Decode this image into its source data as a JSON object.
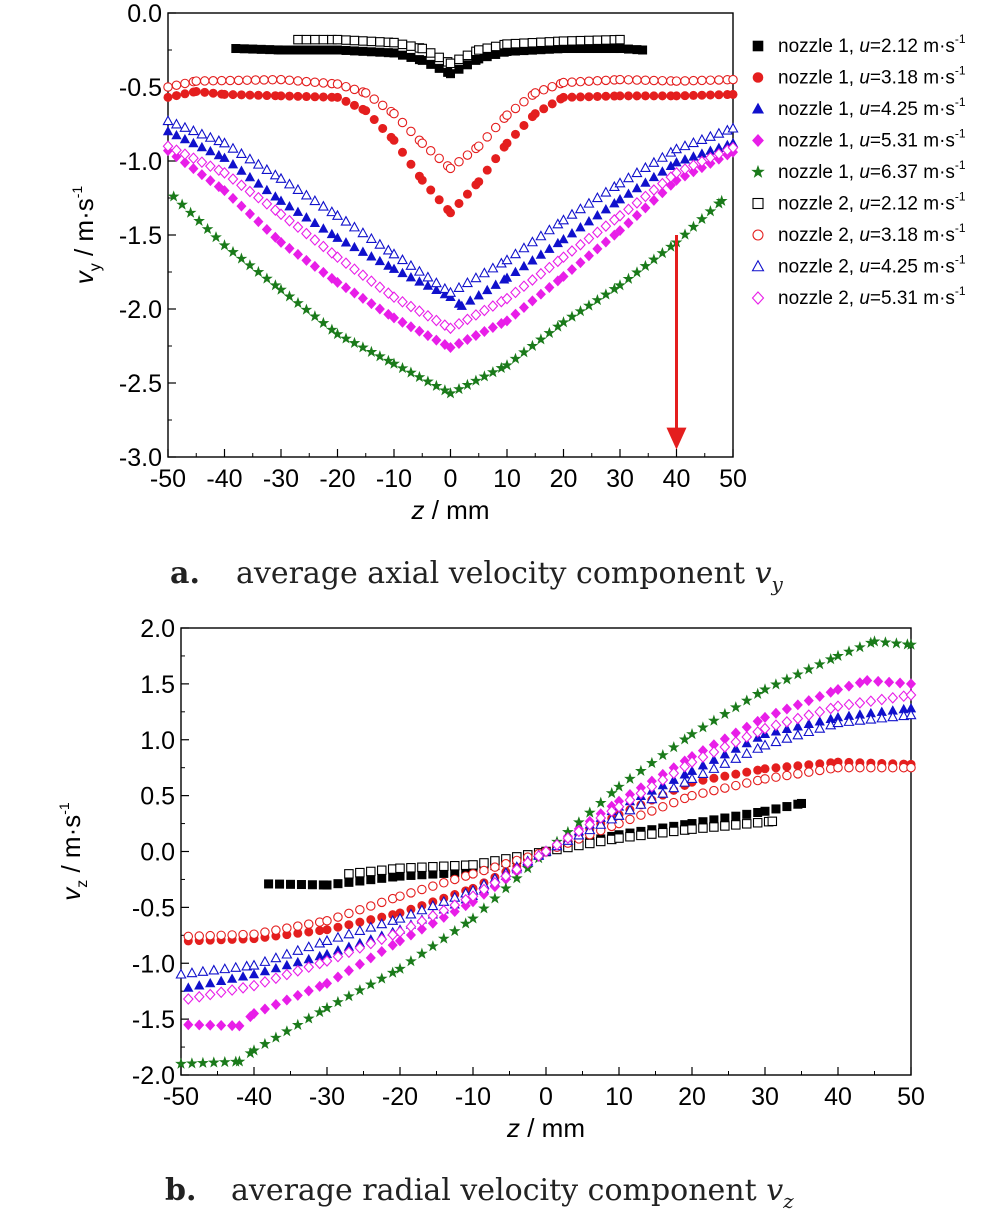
{
  "chart_data": [
    {
      "type": "scatter",
      "xlabel": "z / mm",
      "ylabel": "v_y / m·s^-1",
      "ylabel_parts": {
        "main": "v",
        "sub": "y",
        "unit": " / m·s",
        "sup": "-1"
      },
      "xlim": [
        -50,
        50
      ],
      "ylim": [
        -3.0,
        0.0
      ],
      "xticks": [
        "-50",
        "-40",
        "-30",
        "-20",
        "-10",
        "0",
        "10",
        "20",
        "30",
        "40",
        "50"
      ],
      "yticks": [
        "0.0",
        "-0.5",
        "-1.0",
        "-1.5",
        "-2.0",
        "-2.5",
        "-3.0"
      ],
      "caption": {
        "letter": "a.",
        "text": "average axial velocity component",
        "var": "v",
        "sub": "y"
      },
      "legend_position": "right",
      "annotation": {
        "type": "arrow",
        "label": "",
        "x": 40,
        "y_from": -1.5,
        "y_to": -2.95,
        "color": "#e41e1e"
      },
      "series": [
        {
          "name": "nozzle 1, u=2.12 m·s-1",
          "nozzle": "nozzle 1, ",
          "u": "u",
          "val": "=2.12 m·s",
          "sup": "-1",
          "marker": "square-filled",
          "color": "#000000",
          "points": [
            [
              -38,
              -0.24
            ],
            [
              -30,
              -0.25
            ],
            [
              -20,
              -0.25
            ],
            [
              -10,
              -0.27
            ],
            [
              -5,
              -0.32
            ],
            [
              0,
              -0.41
            ],
            [
              5,
              -0.31
            ],
            [
              10,
              -0.26
            ],
            [
              20,
              -0.24
            ],
            [
              30,
              -0.24
            ],
            [
              34,
              -0.25
            ]
          ]
        },
        {
          "name": "nozzle 1, u=3.18 m·s-1",
          "nozzle": "nozzle 1, ",
          "u": "u",
          "val": "=3.18 m·s",
          "sup": "-1",
          "marker": "circle-filled",
          "color": "#e41e1e",
          "points": [
            [
              -50,
              -0.57
            ],
            [
              -45,
              -0.53
            ],
            [
              -40,
              -0.55
            ],
            [
              -30,
              -0.56
            ],
            [
              -20,
              -0.57
            ],
            [
              -15,
              -0.66
            ],
            [
              -10,
              -0.86
            ],
            [
              -5,
              -1.13
            ],
            [
              0,
              -1.35
            ],
            [
              5,
              -1.14
            ],
            [
              10,
              -0.88
            ],
            [
              15,
              -0.68
            ],
            [
              20,
              -0.57
            ],
            [
              30,
              -0.56
            ],
            [
              40,
              -0.56
            ],
            [
              50,
              -0.55
            ]
          ]
        },
        {
          "name": "nozzle 1, u=4.25 m·s-1",
          "nozzle": "nozzle 1, ",
          "u": "u",
          "val": "=4.25 m·s",
          "sup": "-1",
          "marker": "triangle-filled",
          "color": "#1010cc",
          "points": [
            [
              -50,
              -0.8
            ],
            [
              -40,
              -0.98
            ],
            [
              -30,
              -1.27
            ],
            [
              -20,
              -1.52
            ],
            [
              -10,
              -1.73
            ],
            [
              0,
              -1.92
            ],
            [
              2,
              -1.98
            ],
            [
              10,
              -1.79
            ],
            [
              20,
              -1.53
            ],
            [
              30,
              -1.26
            ],
            [
              40,
              -1.01
            ],
            [
              50,
              -0.88
            ]
          ]
        },
        {
          "name": "nozzle 1, u=5.31 m·s-1",
          "nozzle": "nozzle 1, ",
          "u": "u",
          "val": "=5.31 m·s",
          "sup": "-1",
          "marker": "diamond-filled",
          "color": "#e81ee8",
          "points": [
            [
              -50,
              -0.93
            ],
            [
              -40,
              -1.2
            ],
            [
              -30,
              -1.55
            ],
            [
              -20,
              -1.82
            ],
            [
              -10,
              -2.06
            ],
            [
              0,
              -2.26
            ],
            [
              10,
              -2.08
            ],
            [
              20,
              -1.78
            ],
            [
              30,
              -1.47
            ],
            [
              40,
              -1.13
            ],
            [
              50,
              -0.94
            ]
          ]
        },
        {
          "name": "nozzle 1, u=6.37 m·s-1",
          "nozzle": "nozzle 1, ",
          "u": "u",
          "val": "=6.37 m·s",
          "sup": "-1",
          "marker": "star-filled",
          "color": "#1a7a1a",
          "points": [
            [
              -49,
              -1.24
            ],
            [
              -40,
              -1.57
            ],
            [
              -30,
              -1.87
            ],
            [
              -20,
              -2.17
            ],
            [
              -10,
              -2.37
            ],
            [
              0,
              -2.57
            ],
            [
              10,
              -2.38
            ],
            [
              20,
              -2.09
            ],
            [
              30,
              -1.84
            ],
            [
              40,
              -1.55
            ],
            [
              48,
              -1.27
            ]
          ]
        },
        {
          "name": "nozzle 2, u=2.12 m·s-1",
          "nozzle": "nozzle 2, ",
          "u": "u",
          "val": "=2.12 m·s",
          "sup": "-1",
          "marker": "square-open",
          "color": "#000000",
          "points": [
            [
              -27,
              -0.18
            ],
            [
              -20,
              -0.18
            ],
            [
              -10,
              -0.2
            ],
            [
              -5,
              -0.24
            ],
            [
              0,
              -0.34
            ],
            [
              5,
              -0.25
            ],
            [
              10,
              -0.21
            ],
            [
              20,
              -0.19
            ],
            [
              30,
              -0.18
            ]
          ]
        },
        {
          "name": "nozzle 2, u=3.18 m·s-1",
          "nozzle": "nozzle 2, ",
          "u": "u",
          "val": "=3.18 m·s",
          "sup": "-1",
          "marker": "circle-open",
          "color": "#e41e1e",
          "points": [
            [
              -50,
              -0.5
            ],
            [
              -45,
              -0.46
            ],
            [
              -30,
              -0.45
            ],
            [
              -20,
              -0.48
            ],
            [
              -15,
              -0.54
            ],
            [
              -10,
              -0.68
            ],
            [
              -5,
              -0.88
            ],
            [
              0,
              -1.05
            ],
            [
              5,
              -0.9
            ],
            [
              10,
              -0.69
            ],
            [
              15,
              -0.54
            ],
            [
              20,
              -0.47
            ],
            [
              30,
              -0.45
            ],
            [
              40,
              -0.46
            ],
            [
              50,
              -0.45
            ]
          ]
        },
        {
          "name": "nozzle 2, u=4.25 m·s-1",
          "nozzle": "nozzle 2, ",
          "u": "u",
          "val": "=4.25 m·s",
          "sup": "-1",
          "marker": "triangle-open",
          "color": "#1010cc",
          "points": [
            [
              -50,
              -0.73
            ],
            [
              -40,
              -0.88
            ],
            [
              -30,
              -1.12
            ],
            [
              -20,
              -1.37
            ],
            [
              -10,
              -1.63
            ],
            [
              0,
              -1.89
            ],
            [
              10,
              -1.67
            ],
            [
              20,
              -1.4
            ],
            [
              30,
              -1.15
            ],
            [
              40,
              -0.92
            ],
            [
              50,
              -0.78
            ]
          ]
        },
        {
          "name": "nozzle 2, u=5.31 m·s-1",
          "nozzle": "nozzle 2, ",
          "u": "u",
          "val": "=5.31 m·s",
          "sup": "-1",
          "marker": "diamond-open",
          "color": "#e81ee8",
          "points": [
            [
              -50,
              -0.9
            ],
            [
              -40,
              -1.08
            ],
            [
              -30,
              -1.36
            ],
            [
              -20,
              -1.65
            ],
            [
              -10,
              -1.92
            ],
            [
              0,
              -2.13
            ],
            [
              10,
              -1.93
            ],
            [
              20,
              -1.65
            ],
            [
              30,
              -1.37
            ],
            [
              40,
              -1.08
            ],
            [
              50,
              -0.91
            ]
          ]
        }
      ]
    },
    {
      "type": "scatter",
      "xlabel": "z / mm",
      "ylabel": "v_z / m·s^-1",
      "ylabel_parts": {
        "main": "v",
        "sub": "z",
        "unit": " / m·s",
        "sup": "-1"
      },
      "xlim": [
        -50,
        50
      ],
      "ylim": [
        -2.0,
        2.0
      ],
      "xticks": [
        "-50",
        "-40",
        "-30",
        "-20",
        "-10",
        "0",
        "10",
        "20",
        "30",
        "40",
        "50"
      ],
      "yticks": [
        "2.0",
        "1.5",
        "1.0",
        "0.5",
        "0.0",
        "-0.5",
        "-1.0",
        "-1.5",
        "-2.0"
      ],
      "caption": {
        "letter": "b.",
        "text": "average radial velocity component",
        "var": "v",
        "sub": "z"
      },
      "series": [
        {
          "name": "nozzle 1, u=2.12 m·s-1",
          "marker": "square-filled",
          "color": "#000000",
          "points": [
            [
              -38,
              -0.29
            ],
            [
              -30,
              -0.3
            ],
            [
              -20,
              -0.22
            ],
            [
              -10,
              -0.18
            ],
            [
              0,
              0.0
            ],
            [
              10,
              0.15
            ],
            [
              20,
              0.25
            ],
            [
              30,
              0.36
            ],
            [
              35,
              0.43
            ]
          ]
        },
        {
          "name": "nozzle 1, u=3.18 m·s-1",
          "marker": "circle-filled",
          "color": "#e41e1e",
          "points": [
            [
              -49,
              -0.8
            ],
            [
              -40,
              -0.78
            ],
            [
              -30,
              -0.7
            ],
            [
              -20,
              -0.55
            ],
            [
              -10,
              -0.33
            ],
            [
              0,
              0.0
            ],
            [
              10,
              0.33
            ],
            [
              20,
              0.62
            ],
            [
              30,
              0.74
            ],
            [
              40,
              0.8
            ],
            [
              50,
              0.78
            ]
          ]
        },
        {
          "name": "nozzle 1, u=4.25 m·s-1",
          "marker": "triangle-filled",
          "color": "#1010cc",
          "points": [
            [
              -49,
              -1.22
            ],
            [
              -40,
              -1.1
            ],
            [
              -30,
              -0.92
            ],
            [
              -20,
              -0.7
            ],
            [
              -10,
              -0.4
            ],
            [
              0,
              0.0
            ],
            [
              10,
              0.4
            ],
            [
              20,
              0.72
            ],
            [
              30,
              1.05
            ],
            [
              40,
              1.2
            ],
            [
              50,
              1.28
            ]
          ]
        },
        {
          "name": "nozzle 1, u=5.31 m·s-1",
          "marker": "diamond-filled",
          "color": "#e81ee8",
          "points": [
            [
              -49,
              -1.55
            ],
            [
              -42,
              -1.56
            ],
            [
              -40,
              -1.45
            ],
            [
              -30,
              -1.18
            ],
            [
              -20,
              -0.8
            ],
            [
              -10,
              -0.45
            ],
            [
              0,
              0.0
            ],
            [
              10,
              0.45
            ],
            [
              20,
              0.85
            ],
            [
              30,
              1.2
            ],
            [
              40,
              1.45
            ],
            [
              44,
              1.53
            ],
            [
              50,
              1.5
            ]
          ]
        },
        {
          "name": "nozzle 1, u=6.37 m·s-1",
          "marker": "star-filled",
          "color": "#1a7a1a",
          "points": [
            [
              -50,
              -1.9
            ],
            [
              -42,
              -1.88
            ],
            [
              -40,
              -1.78
            ],
            [
              -30,
              -1.4
            ],
            [
              -20,
              -1.05
            ],
            [
              -10,
              -0.6
            ],
            [
              0,
              0.0
            ],
            [
              10,
              0.58
            ],
            [
              20,
              1.05
            ],
            [
              30,
              1.45
            ],
            [
              40,
              1.75
            ],
            [
              45,
              1.88
            ],
            [
              50,
              1.85
            ]
          ]
        },
        {
          "name": "nozzle 2, u=2.12 m·s-1",
          "marker": "square-open",
          "color": "#000000",
          "points": [
            [
              -27,
              -0.2
            ],
            [
              -20,
              -0.15
            ],
            [
              -10,
              -0.12
            ],
            [
              0,
              0.0
            ],
            [
              10,
              0.12
            ],
            [
              20,
              0.2
            ],
            [
              31,
              0.27
            ]
          ]
        },
        {
          "name": "nozzle 2, u=3.18 m·s-1",
          "marker": "circle-open",
          "color": "#e41e1e",
          "points": [
            [
              -49,
              -0.76
            ],
            [
              -40,
              -0.74
            ],
            [
              -30,
              -0.62
            ],
            [
              -20,
              -0.4
            ],
            [
              -10,
              -0.2
            ],
            [
              0,
              0.0
            ],
            [
              10,
              0.25
            ],
            [
              20,
              0.5
            ],
            [
              30,
              0.65
            ],
            [
              40,
              0.75
            ],
            [
              50,
              0.75
            ]
          ]
        },
        {
          "name": "nozzle 2, u=4.25 m·s-1",
          "marker": "triangle-open",
          "color": "#1010cc",
          "points": [
            [
              -50,
              -1.1
            ],
            [
              -40,
              -1.02
            ],
            [
              -30,
              -0.8
            ],
            [
              -20,
              -0.6
            ],
            [
              -10,
              -0.35
            ],
            [
              0,
              0.0
            ],
            [
              10,
              0.32
            ],
            [
              20,
              0.65
            ],
            [
              30,
              0.95
            ],
            [
              40,
              1.15
            ],
            [
              50,
              1.22
            ]
          ]
        },
        {
          "name": "nozzle 2, u=5.31 m·s-1",
          "marker": "diamond-open",
          "color": "#e81ee8",
          "points": [
            [
              -49,
              -1.32
            ],
            [
              -40,
              -1.2
            ],
            [
              -30,
              -0.98
            ],
            [
              -20,
              -0.72
            ],
            [
              -10,
              -0.4
            ],
            [
              0,
              0.0
            ],
            [
              10,
              0.4
            ],
            [
              20,
              0.8
            ],
            [
              30,
              1.1
            ],
            [
              40,
              1.3
            ],
            [
              50,
              1.4
            ]
          ]
        }
      ]
    }
  ]
}
